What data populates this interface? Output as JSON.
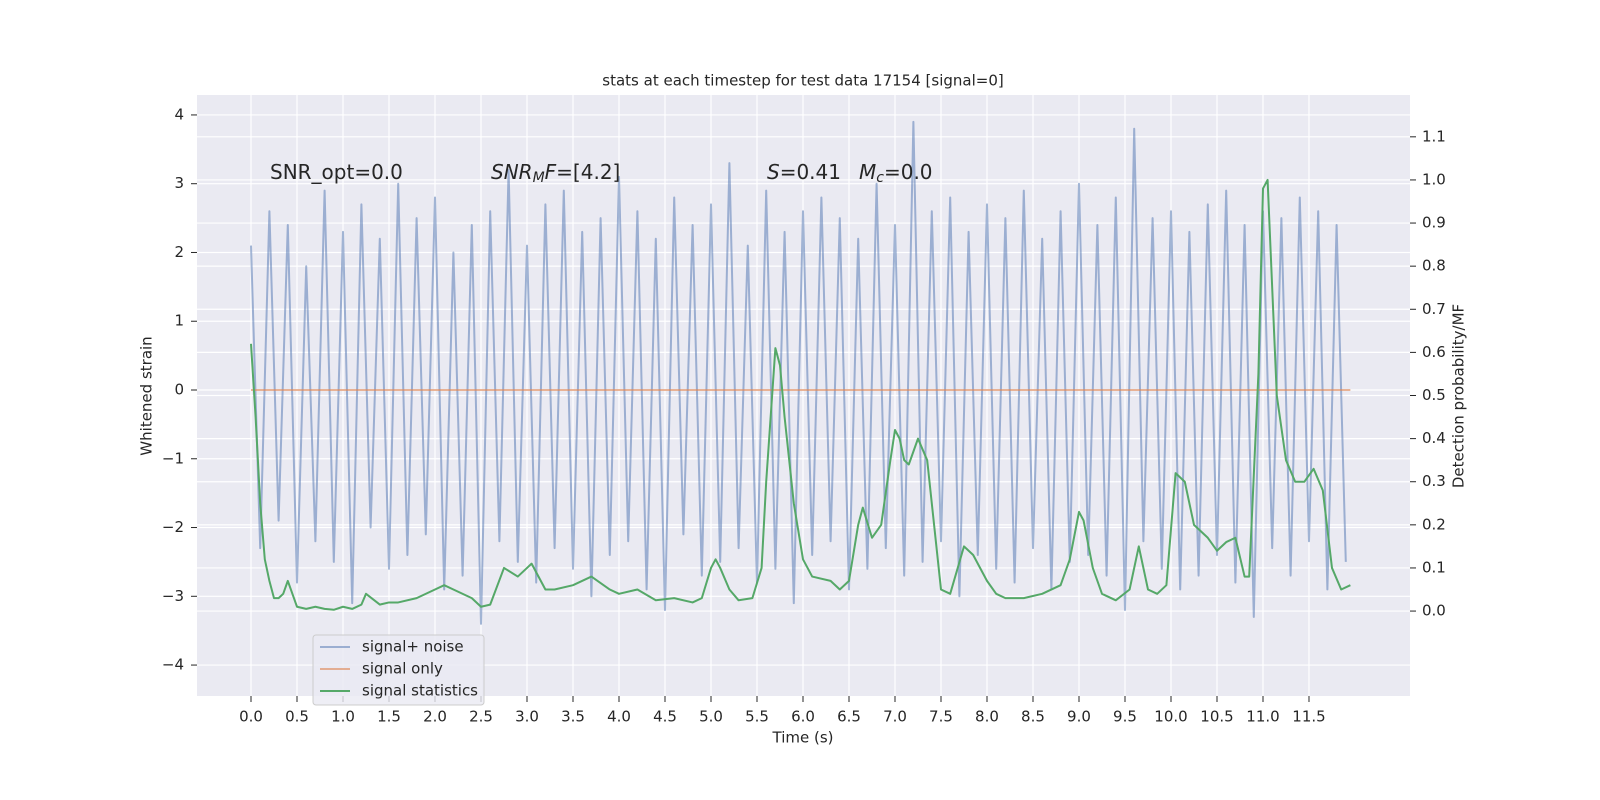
{
  "chart_data": {
    "type": "line",
    "title": "stats at each timestep for test data 17154 [signal=0]",
    "xlabel": "Time (s)",
    "ylabel": "Whitened strain",
    "y2label": "Detection probability/MF",
    "xlim": [
      -0.587,
      12.598
    ],
    "ylim": [
      -4.45,
      4.29
    ],
    "y2lim": [
      -0.197,
      1.197
    ],
    "grid": true,
    "legend": "lower left",
    "xticks": [
      {
        "value": 0,
        "label": "0.0"
      },
      {
        "value": 0.5,
        "label": "0.5"
      },
      {
        "value": 1,
        "label": "1.0"
      },
      {
        "value": 1.5,
        "label": "1.5"
      },
      {
        "value": 2,
        "label": "2.0"
      },
      {
        "value": 2.5,
        "label": "2.5"
      },
      {
        "value": 3,
        "label": "3.0"
      },
      {
        "value": 3.5,
        "label": "3.5"
      },
      {
        "value": 4,
        "label": "4.0"
      },
      {
        "value": 4.5,
        "label": "4.5"
      },
      {
        "value": 5,
        "label": "5.0"
      },
      {
        "value": 5.5,
        "label": "5.5"
      },
      {
        "value": 6,
        "label": "6.0"
      },
      {
        "value": 6.5,
        "label": "6.5"
      },
      {
        "value": 7,
        "label": "7.0"
      },
      {
        "value": 7.5,
        "label": "7.5"
      },
      {
        "value": 8,
        "label": "8.0"
      },
      {
        "value": 8.5,
        "label": "8.5"
      },
      {
        "value": 9,
        "label": "9.0"
      },
      {
        "value": 9.5,
        "label": "9.5"
      },
      {
        "value": 10,
        "label": "10.0"
      },
      {
        "value": 10.5,
        "label": "10.5"
      },
      {
        "value": 11,
        "label": "11.0"
      },
      {
        "value": 11.5,
        "label": "11.5"
      }
    ],
    "yticks": [
      {
        "value": -4,
        "label": "−4"
      },
      {
        "value": -3,
        "label": "−3"
      },
      {
        "value": -2,
        "label": "−2"
      },
      {
        "value": -1,
        "label": "−1"
      },
      0,
      1,
      2,
      3,
      4
    ],
    "y2ticks": [
      {
        "value": 0,
        "label": "0.0"
      },
      {
        "value": 0.1,
        "label": "0.1"
      },
      {
        "value": 0.2,
        "label": "0.2"
      },
      {
        "value": 0.3,
        "label": "0.3"
      },
      {
        "value": 0.4,
        "label": "0.4"
      },
      {
        "value": 0.5,
        "label": "0.5"
      },
      {
        "value": 0.6,
        "label": "0.6"
      },
      {
        "value": 0.7,
        "label": "0.7"
      },
      {
        "value": 0.8,
        "label": "0.8"
      },
      {
        "value": 0.9,
        "label": "0.9"
      },
      {
        "value": 1,
        "label": "1.0"
      },
      {
        "value": 1.1,
        "label": "1.1"
      }
    ],
    "annotations": [
      {
        "parts": [
          {
            "text": "SNR_opt=0.0"
          }
        ]
      },
      {
        "parts": [
          {
            "text": "SNR",
            "italic": true
          },
          {
            "text": "M",
            "italic": true,
            "sub": true
          },
          {
            "text": "F",
            "italic": true
          },
          {
            "text": "=[4.2]"
          }
        ]
      },
      {
        "parts": [
          {
            "text": "S",
            "italic": true
          },
          {
            "text": "=0.41"
          }
        ]
      },
      {
        "parts": [
          {
            "text": "M",
            "italic": true
          },
          {
            "text": "c",
            "italic": true,
            "sub": true
          },
          {
            "text": "=0.0"
          }
        ]
      }
    ],
    "series": [
      {
        "name": "signal+ noise",
        "color": "#4c72b0",
        "opacity": 0.5,
        "x": [
          0,
          0.1,
          0.2,
          0.3,
          0.4,
          0.5,
          0.6,
          0.7,
          0.8,
          0.9,
          1,
          1.1,
          1.2,
          1.3,
          1.4,
          1.5,
          1.6,
          1.7,
          1.8,
          1.9,
          2,
          2.1,
          2.2,
          2.3,
          2.4,
          2.5,
          2.6,
          2.7,
          2.8,
          2.9,
          3,
          3.1,
          3.2,
          3.3,
          3.4,
          3.5,
          3.6,
          3.7,
          3.8,
          3.9,
          4,
          4.1,
          4.2,
          4.3,
          4.4,
          4.5,
          4.6,
          4.7,
          4.8,
          4.9,
          5,
          5.1,
          5.2,
          5.3,
          5.4,
          5.5,
          5.6,
          5.7,
          5.8,
          5.9,
          6,
          6.1,
          6.2,
          6.3,
          6.4,
          6.5,
          6.6,
          6.7,
          6.8,
          6.9,
          7,
          7.1,
          7.2,
          7.3,
          7.4,
          7.5,
          7.6,
          7.7,
          7.8,
          7.9,
          8,
          8.1,
          8.2,
          8.3,
          8.4,
          8.5,
          8.6,
          8.7,
          8.8,
          8.9,
          9,
          9.1,
          9.2,
          9.3,
          9.4,
          9.5,
          9.6,
          9.7,
          9.8,
          9.9,
          10,
          10.1,
          10.2,
          10.3,
          10.4,
          10.5,
          10.6,
          10.7,
          10.8,
          10.9,
          11,
          11.1,
          11.2,
          11.3,
          11.4,
          11.5,
          11.6,
          11.7,
          11.8,
          11.9
        ],
        "values": [
          2.1,
          -2.3,
          2.6,
          -1.9,
          2.4,
          -2.8,
          1.8,
          -2.2,
          2.9,
          -2.5,
          2.3,
          -3.1,
          2.7,
          -2.0,
          2.2,
          -2.6,
          3.0,
          -2.4,
          2.5,
          -2.1,
          2.8,
          -2.9,
          2.0,
          -2.7,
          2.4,
          -3.4,
          2.6,
          -2.2,
          3.2,
          -2.5,
          2.1,
          -2.8,
          2.7,
          -2.3,
          2.9,
          -2.6,
          2.3,
          -3.0,
          2.5,
          -2.4,
          3.1,
          -2.2,
          2.6,
          -2.9,
          2.2,
          -3.2,
          2.8,
          -2.1,
          2.4,
          -2.7,
          2.7,
          -2.5,
          3.3,
          -2.3,
          2.1,
          -2.8,
          2.9,
          -2.6,
          2.3,
          -3.1,
          2.6,
          -2.4,
          2.8,
          -2.2,
          2.5,
          -2.9,
          2.2,
          -2.6,
          3.0,
          -2.3,
          2.4,
          -2.7,
          3.9,
          -2.5,
          2.6,
          -2.2,
          2.8,
          -3.0,
          2.3,
          -2.4,
          2.7,
          -2.6,
          2.5,
          -2.8,
          2.9,
          -2.3,
          2.2,
          -2.9,
          2.6,
          -2.5,
          3.0,
          -2.4,
          2.4,
          -2.7,
          2.8,
          -3.2,
          3.8,
          -2.2,
          2.5,
          -2.6,
          2.6,
          -2.9,
          2.3,
          -2.7,
          2.7,
          -2.4,
          2.9,
          -2.8,
          2.4,
          -3.3,
          2.6,
          -2.3,
          2.5,
          -2.7,
          2.8,
          -2.2,
          2.6,
          -2.9,
          2.4,
          -2.5
        ]
      },
      {
        "name": "signal only",
        "color": "#dd8452",
        "opacity": 0.6,
        "x": [
          0,
          11.95
        ],
        "values": [
          0,
          0
        ]
      },
      {
        "name": "signal statistics",
        "color": "#55a868",
        "opacity": 1,
        "axis": "y2",
        "x": [
          0,
          0.05,
          0.1,
          0.15,
          0.2,
          0.25,
          0.3,
          0.35,
          0.4,
          0.45,
          0.5,
          0.6,
          0.7,
          0.8,
          0.9,
          1,
          1.1,
          1.2,
          1.25,
          1.4,
          1.5,
          1.6,
          1.8,
          2,
          2.1,
          2.2,
          2.4,
          2.5,
          2.6,
          2.75,
          2.9,
          3,
          3.05,
          3.2,
          3.3,
          3.5,
          3.7,
          3.9,
          4,
          4.2,
          4.4,
          4.6,
          4.8,
          4.9,
          5,
          5.05,
          5.1,
          5.2,
          5.3,
          5.45,
          5.55,
          5.6,
          5.7,
          5.75,
          5.8,
          5.9,
          6,
          6.1,
          6.3,
          6.4,
          6.5,
          6.6,
          6.65,
          6.75,
          6.85,
          6.95,
          7,
          7.05,
          7.1,
          7.15,
          7.25,
          7.35,
          7.45,
          7.5,
          7.6,
          7.75,
          7.85,
          8,
          8.1,
          8.2,
          8.4,
          8.6,
          8.8,
          8.9,
          9,
          9.05,
          9.15,
          9.25,
          9.4,
          9.55,
          9.65,
          9.75,
          9.85,
          9.95,
          10.05,
          10.15,
          10.25,
          10.4,
          10.5,
          10.6,
          10.7,
          10.8,
          10.85,
          10.95,
          11,
          11.05,
          11.15,
          11.25,
          11.35,
          11.45,
          11.55,
          11.65,
          11.75,
          11.85,
          11.95
        ],
        "values": [
          0.62,
          0.45,
          0.25,
          0.12,
          0.07,
          0.03,
          0.03,
          0.04,
          0.07,
          0.04,
          0.01,
          0.005,
          0.01,
          0.005,
          0.003,
          0.01,
          0.005,
          0.015,
          0.04,
          0.015,
          0.02,
          0.02,
          0.03,
          0.05,
          0.06,
          0.05,
          0.03,
          0.01,
          0.015,
          0.1,
          0.08,
          0.1,
          0.11,
          0.05,
          0.05,
          0.06,
          0.08,
          0.05,
          0.04,
          0.05,
          0.025,
          0.03,
          0.02,
          0.03,
          0.1,
          0.12,
          0.1,
          0.05,
          0.025,
          0.03,
          0.1,
          0.3,
          0.61,
          0.57,
          0.45,
          0.25,
          0.12,
          0.08,
          0.07,
          0.05,
          0.07,
          0.2,
          0.24,
          0.17,
          0.2,
          0.35,
          0.42,
          0.4,
          0.35,
          0.34,
          0.4,
          0.35,
          0.15,
          0.05,
          0.04,
          0.15,
          0.13,
          0.07,
          0.04,
          0.03,
          0.03,
          0.04,
          0.06,
          0.12,
          0.23,
          0.21,
          0.1,
          0.04,
          0.025,
          0.05,
          0.15,
          0.05,
          0.04,
          0.06,
          0.32,
          0.3,
          0.2,
          0.17,
          0.14,
          0.16,
          0.17,
          0.08,
          0.08,
          0.55,
          0.98,
          1.0,
          0.5,
          0.35,
          0.3,
          0.3,
          0.33,
          0.28,
          0.1,
          0.05,
          0.06
        ]
      }
    ]
  }
}
